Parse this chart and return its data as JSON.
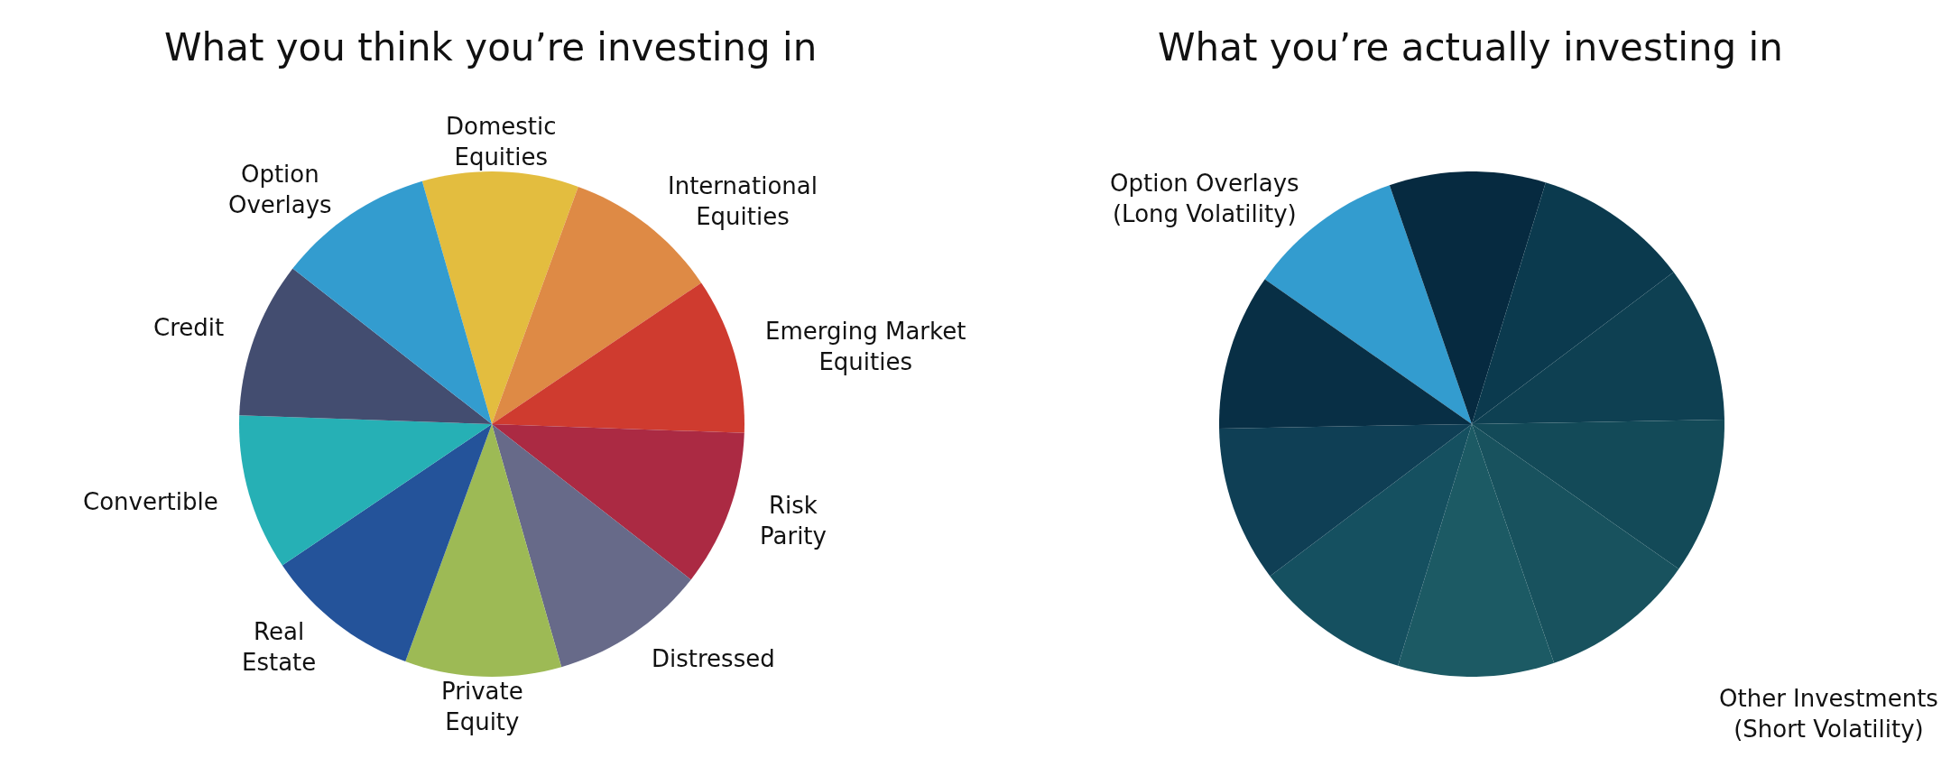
{
  "chart_data": [
    {
      "type": "pie",
      "title": "What you think you’re investing in",
      "categories": [
        "Domestic Equities",
        "International Equities",
        "Emerging Market Equities",
        "Risk Parity",
        "Distressed",
        "Private Equity",
        "Real Estate",
        "Convertible",
        "Credit",
        "Option Overlays"
      ],
      "values": [
        10,
        10,
        10,
        10,
        10,
        10,
        10,
        10,
        10,
        10
      ],
      "colors": [
        "#e3bd3f",
        "#de8a45",
        "#cf3b2f",
        "#ab2a43",
        "#676a89",
        "#9dba55",
        "#24539a",
        "#26b0b5",
        "#434d70",
        "#339ccf"
      ]
    },
    {
      "type": "pie",
      "title": "What you’re actually investing in",
      "categories": [
        "Option Overlays (Long Volatility)",
        null,
        null,
        null,
        null,
        null,
        null,
        null,
        null,
        null
      ],
      "values": [
        10,
        10,
        10,
        10,
        10,
        10,
        10,
        10,
        10,
        10
      ],
      "colors": [
        "#339ccf",
        "#062a40",
        "#0b3a4e",
        "#0e4052",
        "#134a58",
        "#18525e",
        "#1c5a64",
        "#155060",
        "#0f3f55",
        "#082f45"
      ],
      "annotations": [
        "Other Investments (Short Volatility)"
      ]
    }
  ]
}
